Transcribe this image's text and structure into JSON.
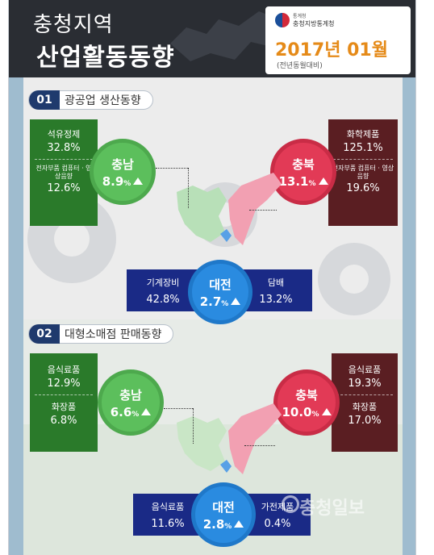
{
  "header": {
    "line1": "충청지역",
    "line2": "산업활동동향",
    "agency_top": "통계청",
    "agency": "충청지방통계청",
    "date": "2017년 01월",
    "date_sub": "(전년동월대비)"
  },
  "section1": {
    "num": "01",
    "title": "광공업 생산동향",
    "chungnam": {
      "name": "충남",
      "value": "8.9",
      "unit": "%",
      "items": [
        {
          "label": "석유정제",
          "value": "32.8%"
        },
        {
          "label": "전자부품 컴퓨터 · 영상음향",
          "value": "12.6%"
        }
      ]
    },
    "chungbuk": {
      "name": "충북",
      "value": "13.1",
      "unit": "%",
      "items": [
        {
          "label": "화학제품",
          "value": "125.1%"
        },
        {
          "label": "전자부품 컴퓨터 · 영상음향",
          "value": "19.6%"
        }
      ]
    },
    "daejeon": {
      "name": "대전",
      "value": "2.7",
      "unit": "%",
      "items": [
        {
          "label": "기계장비",
          "value": "42.8%"
        },
        {
          "label": "담배",
          "value": "13.2%"
        }
      ]
    }
  },
  "section2": {
    "num": "02",
    "title": "대형소매점 판매동향",
    "chungnam": {
      "name": "충남",
      "value": "6.6",
      "unit": "%",
      "items": [
        {
          "label": "음식료품",
          "value": "12.9%"
        },
        {
          "label": "화장품",
          "value": "6.8%"
        }
      ]
    },
    "chungbuk": {
      "name": "충북",
      "value": "10.0",
      "unit": "%",
      "items": [
        {
          "label": "음식료품",
          "value": "19.3%"
        },
        {
          "label": "화장품",
          "value": "17.0%"
        }
      ]
    },
    "daejeon": {
      "name": "대전",
      "value": "2.8",
      "unit": "%",
      "items": [
        {
          "label": "음식료품",
          "value": "11.6%"
        },
        {
          "label": "가전제품",
          "value": "0.4%"
        }
      ]
    }
  },
  "watermark": "충청일보",
  "colors": {
    "green": "#2a7a2a",
    "green_gear": "#5cbf5c",
    "maroon": "#5a1e22",
    "red_gear": "#e23a56",
    "navy": "#1a2a86",
    "blue_gear": "#2a8be0",
    "orange": "#e58a18"
  }
}
